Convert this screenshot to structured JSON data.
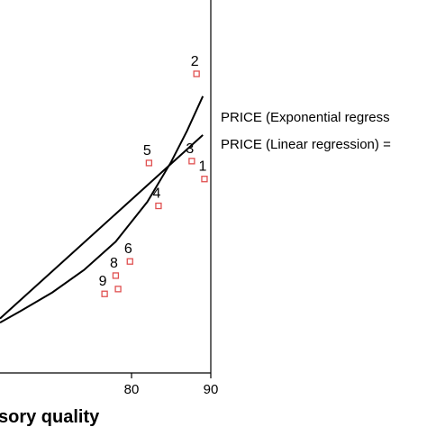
{
  "chart_data": {
    "type": "scatter",
    "xlabel": "sory quality",
    "xlim": [
      63.4,
      90
    ],
    "ylim": [
      0,
      1
    ],
    "x_ticks": [
      80,
      90
    ],
    "points": [
      {
        "label": "1",
        "x": 89.2,
        "y": 0.52
      },
      {
        "label": "2",
        "x": 88.2,
        "y": 0.802
      },
      {
        "label": "3",
        "x": 87.6,
        "y": 0.568
      },
      {
        "label": "4",
        "x": 83.4,
        "y": 0.448
      },
      {
        "label": "5",
        "x": 82.2,
        "y": 0.563
      },
      {
        "label": "6",
        "x": 79.8,
        "y": 0.299
      },
      {
        "label": "8",
        "x": 78.0,
        "y": 0.261
      },
      {
        "label": "",
        "x": 78.3,
        "y": 0.225
      },
      {
        "label": "9",
        "x": 76.6,
        "y": 0.212
      }
    ],
    "point_color": "#e05050",
    "series": [
      {
        "name": "PRICE (Exponential regress",
        "fit": "exponential",
        "x": [
          63.4,
          66,
          70,
          74,
          78,
          82,
          85,
          87,
          89
        ],
        "y": [
          0.135,
          0.166,
          0.216,
          0.276,
          0.352,
          0.459,
          0.566,
          0.649,
          0.742
        ]
      },
      {
        "name": "PRICE (Linear regression) =",
        "fit": "linear",
        "x": [
          63.4,
          89
        ],
        "y": [
          0.146,
          0.638
        ]
      }
    ],
    "legend": {
      "placement": "right"
    }
  }
}
